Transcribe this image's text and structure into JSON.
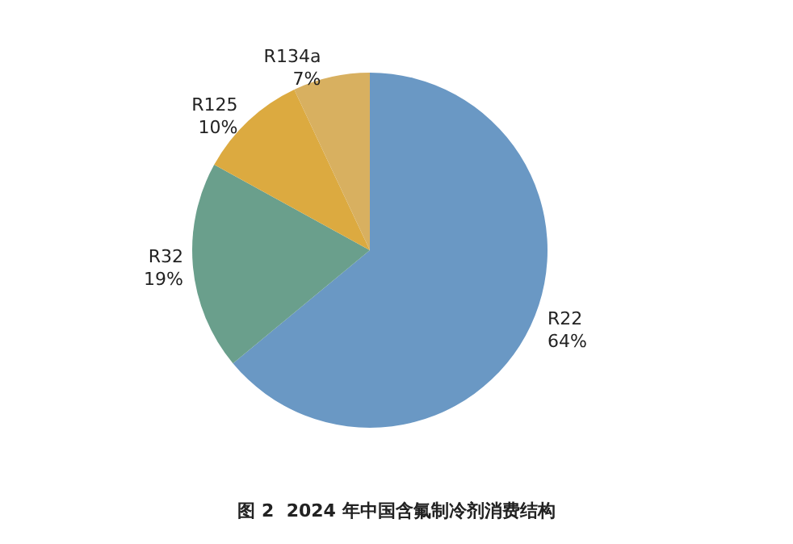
{
  "chart_data": {
    "type": "pie",
    "title": "图 2  2024 年中国含氟制冷剂消费结构",
    "categories": [
      "R22",
      "R32",
      "R125",
      "R134a"
    ],
    "values": [
      64,
      19,
      10,
      7
    ],
    "value_labels": [
      "64%",
      "19%",
      "10%",
      "7%"
    ],
    "colors": [
      "#6a98c4",
      "#6a9f8c",
      "#dcaa40",
      "#d8b060"
    ],
    "legend": false
  }
}
